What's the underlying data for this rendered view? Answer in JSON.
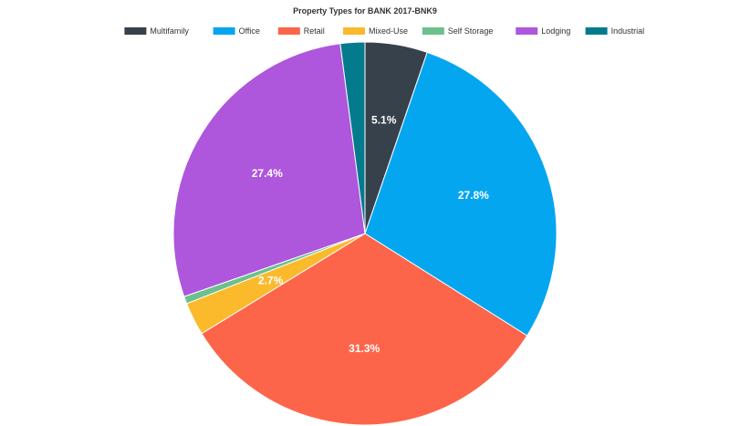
{
  "chart_data": {
    "type": "pie",
    "title": "Property Types for BANK 2017-BNK9",
    "legend_position": "top",
    "categories": [
      "Multifamily",
      "Office",
      "Retail",
      "Mixed-Use",
      "Self Storage",
      "Lodging",
      "Industrial"
    ],
    "values": [
      5.1,
      27.8,
      31.3,
      2.7,
      0.6,
      27.4,
      2.0
    ],
    "colors": [
      "#36414c",
      "#05a6f0",
      "#fd654b",
      "#fbba2c",
      "#6bc18d",
      "#ae56dc",
      "#047b8d"
    ],
    "data_labels": [
      "5.1%",
      "27.8%",
      "31.3%",
      "2.7%",
      "",
      "27.4%",
      ""
    ],
    "start_angle_deg": 0,
    "direction": "clockwise"
  }
}
